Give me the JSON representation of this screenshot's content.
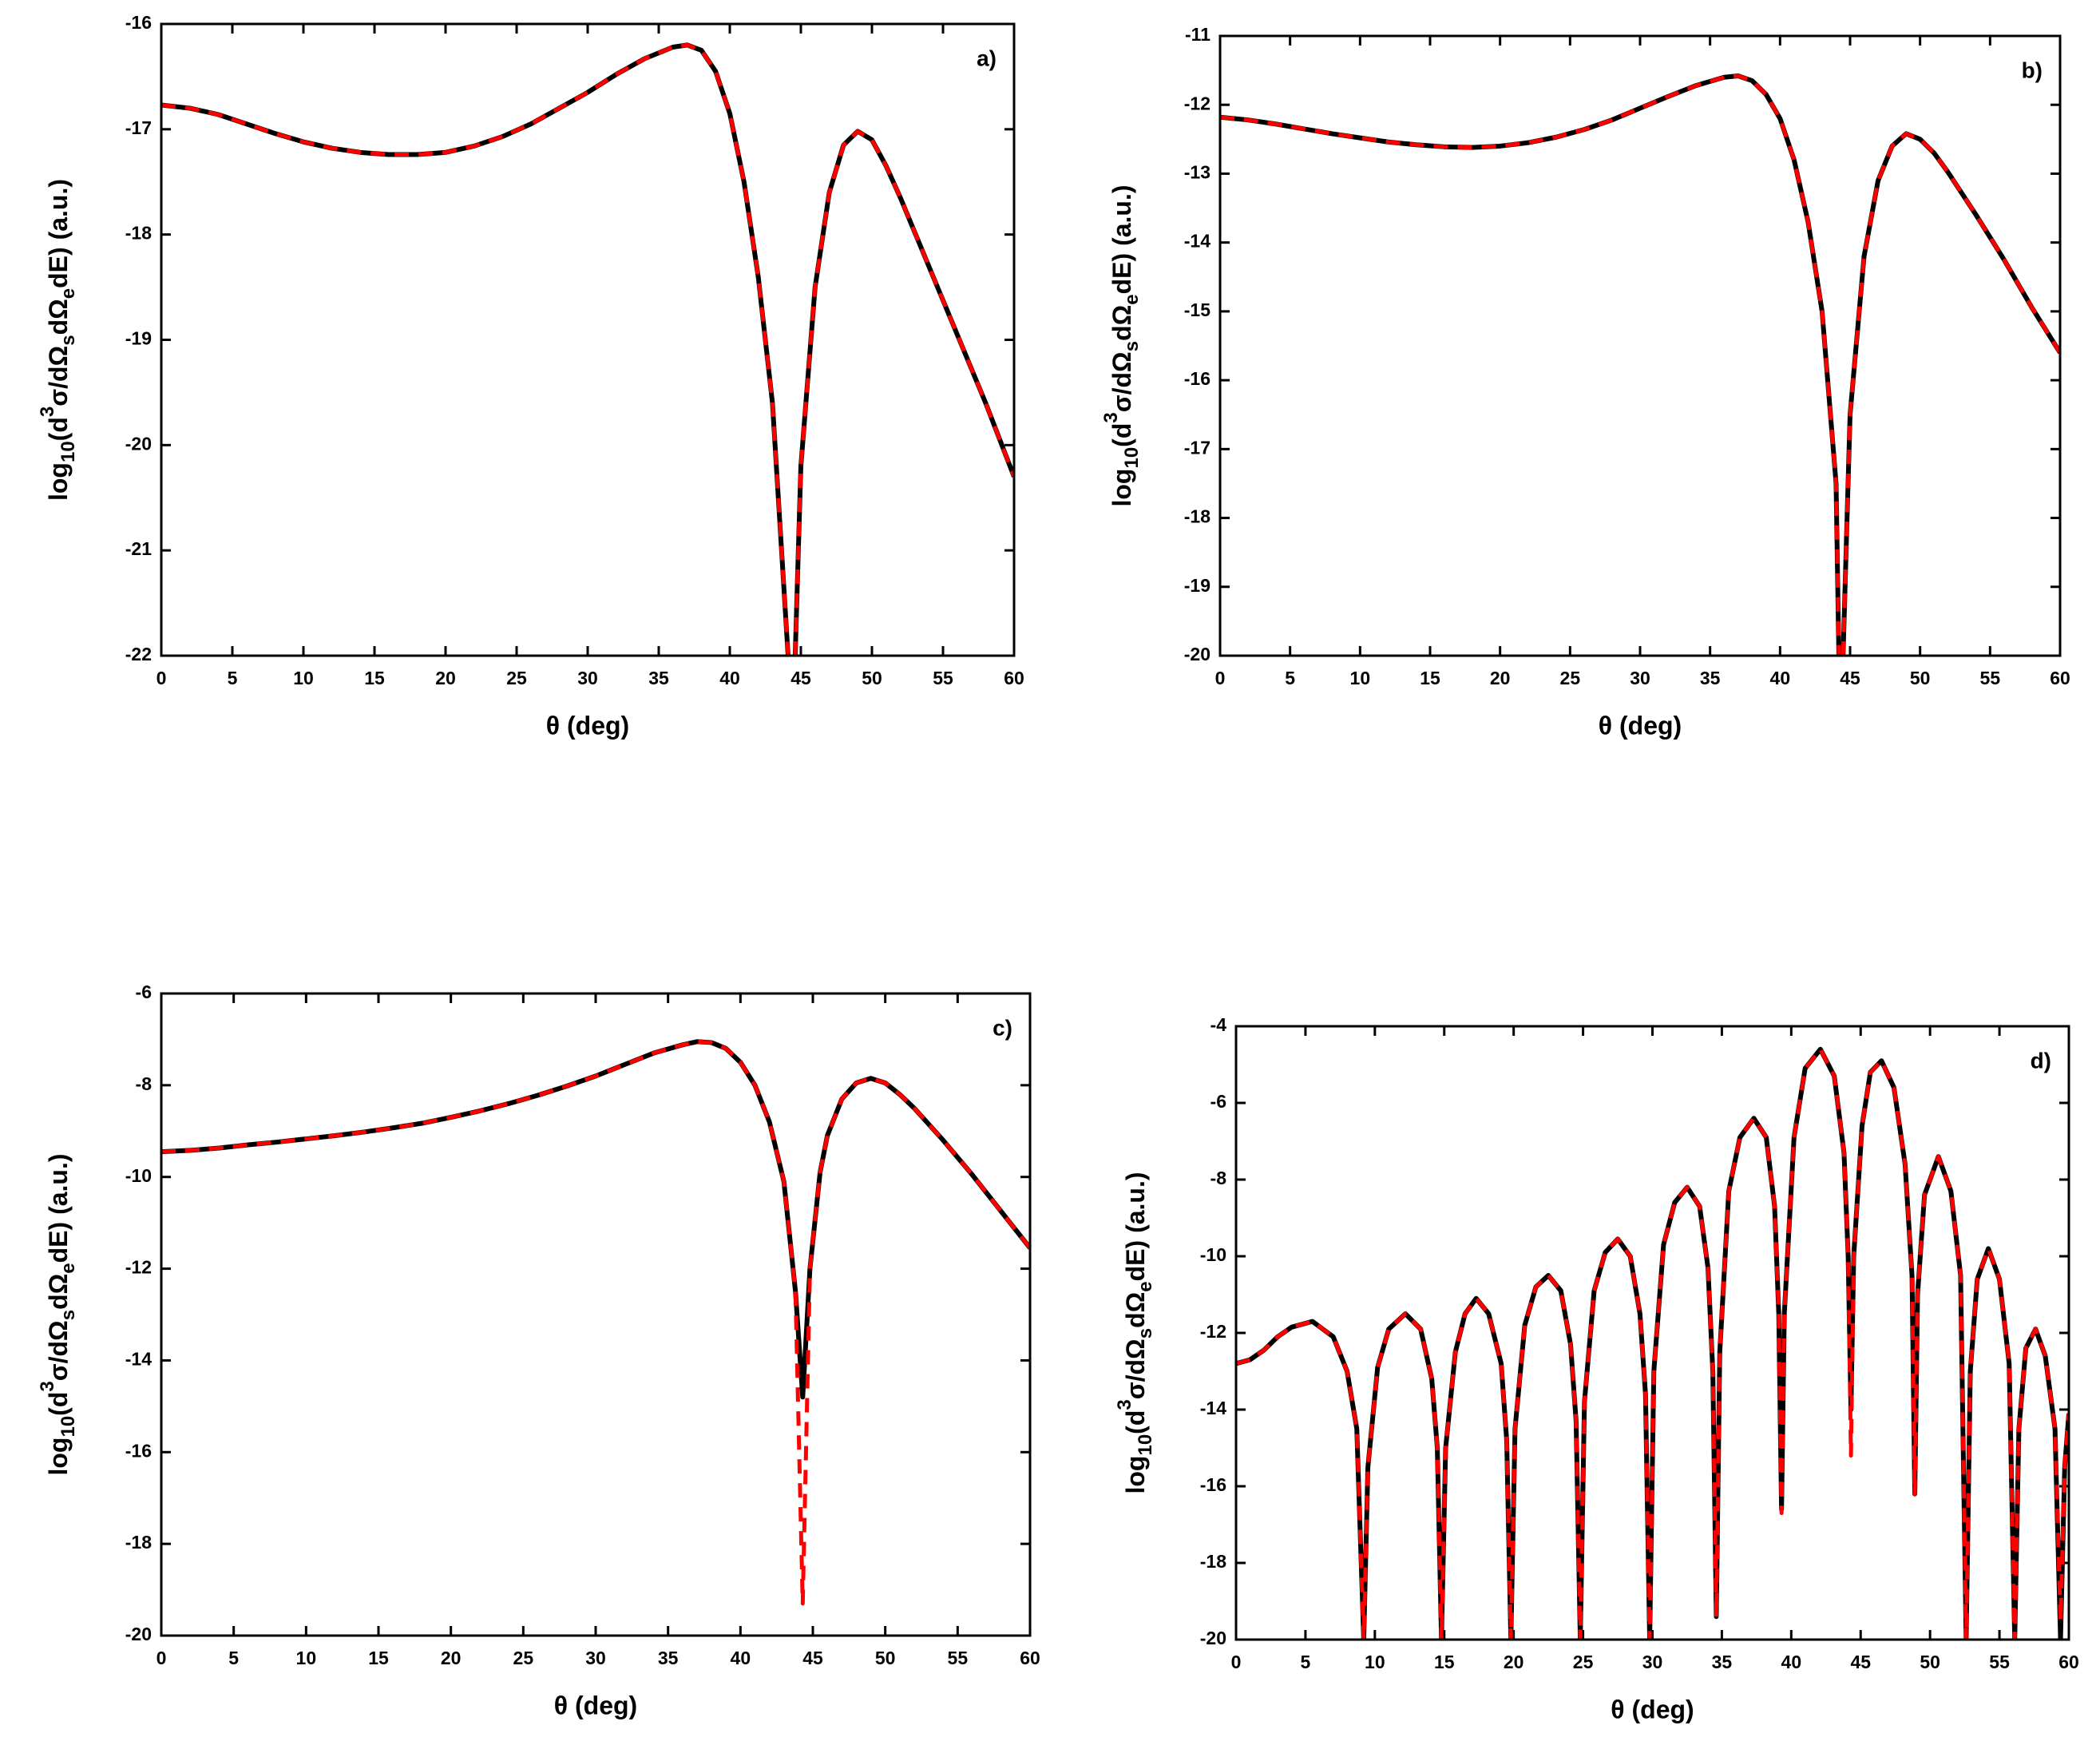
{
  "chart_data": [
    {
      "type": "line",
      "label": "a)",
      "xlabel": "θ (deg)",
      "ylabel": [
        "log",
        "10",
        "(d",
        "3",
        "σ/dΩ",
        "s",
        "dΩ",
        "e",
        "dE) (a.u.)"
      ],
      "xlim": [
        0,
        60
      ],
      "ylim": [
        -22,
        -16
      ],
      "xticks": [
        0,
        5,
        10,
        15,
        20,
        25,
        30,
        35,
        40,
        45,
        50,
        55,
        60
      ],
      "yticks": [
        -22,
        -21,
        -20,
        -19,
        -18,
        -17,
        -16
      ],
      "x": [
        0,
        2,
        4,
        6,
        8,
        10,
        12,
        14,
        16,
        18,
        20,
        22,
        24,
        26,
        28,
        30,
        32,
        34,
        36,
        37,
        38,
        39,
        40,
        41,
        42,
        43,
        44.1,
        44.35,
        44.6,
        45,
        46,
        47,
        48,
        49,
        50,
        51,
        52,
        54,
        56,
        58,
        60
      ],
      "series": [
        {
          "color": "#000000",
          "linestyle": "solid",
          "values": [
            -16.77,
            -16.8,
            -16.86,
            -16.95,
            -17.04,
            -17.12,
            -17.18,
            -17.22,
            -17.24,
            -17.24,
            -17.22,
            -17.16,
            -17.07,
            -16.95,
            -16.8,
            -16.65,
            -16.48,
            -16.33,
            -16.22,
            -16.2,
            -16.25,
            -16.45,
            -16.85,
            -17.5,
            -18.4,
            -19.6,
            -22,
            null,
            -22,
            -20.2,
            -18.5,
            -17.6,
            -17.15,
            -17.02,
            -17.1,
            -17.35,
            -17.65,
            -18.3,
            -18.95,
            -19.6,
            -20.3
          ]
        },
        {
          "color": "#ff0000",
          "linestyle": "dashed",
          "values": [
            -16.77,
            -16.8,
            -16.86,
            -16.95,
            -17.04,
            -17.12,
            -17.18,
            -17.22,
            -17.24,
            -17.24,
            -17.22,
            -17.16,
            -17.07,
            -16.95,
            -16.8,
            -16.65,
            -16.48,
            -16.33,
            -16.22,
            -16.2,
            -16.25,
            -16.45,
            -16.85,
            -17.5,
            -18.4,
            -19.6,
            -22,
            null,
            -22,
            -20.2,
            -18.5,
            -17.6,
            -17.15,
            -17.02,
            -17.1,
            -17.35,
            -17.65,
            -18.3,
            -18.95,
            -19.6,
            -20.3
          ]
        }
      ]
    },
    {
      "type": "line",
      "label": "b)",
      "xlabel": "θ (deg)",
      "ylabel": [
        "log",
        "10",
        "(d",
        "3",
        "σ/dΩ",
        "s",
        "dΩ",
        "e",
        "dE) (a.u.)"
      ],
      "xlim": [
        0,
        60
      ],
      "ylim": [
        -20,
        -11
      ],
      "xticks": [
        0,
        5,
        10,
        15,
        20,
        25,
        30,
        35,
        40,
        45,
        50,
        55,
        60
      ],
      "yticks": [
        -20,
        -19,
        -18,
        -17,
        -16,
        -15,
        -14,
        -13,
        -12,
        -11
      ],
      "x": [
        0,
        2,
        4,
        6,
        8,
        10,
        12,
        14,
        16,
        18,
        20,
        22,
        24,
        26,
        28,
        30,
        32,
        34,
        36,
        37,
        38,
        39,
        40,
        41,
        42,
        43,
        44,
        44.2,
        44.35,
        44.5,
        45,
        46,
        47,
        48,
        49,
        50,
        51,
        52,
        54,
        56,
        58,
        60
      ],
      "series": [
        {
          "color": "#000000",
          "linestyle": "solid",
          "values": [
            -12.18,
            -12.22,
            -12.28,
            -12.35,
            -12.42,
            -12.48,
            -12.54,
            -12.58,
            -12.61,
            -12.62,
            -12.6,
            -12.55,
            -12.47,
            -12.36,
            -12.22,
            -12.05,
            -11.88,
            -11.72,
            -11.6,
            -11.58,
            -11.65,
            -11.85,
            -12.2,
            -12.8,
            -13.7,
            -15,
            -17.5,
            -20,
            null,
            -20,
            -16.5,
            -14.2,
            -13.1,
            -12.6,
            -12.42,
            -12.5,
            -12.7,
            -12.98,
            -13.6,
            -14.25,
            -14.95,
            -15.6
          ]
        },
        {
          "color": "#ff0000",
          "linestyle": "dashed",
          "values": [
            -12.18,
            -12.22,
            -12.28,
            -12.35,
            -12.42,
            -12.48,
            -12.54,
            -12.58,
            -12.61,
            -12.62,
            -12.6,
            -12.55,
            -12.47,
            -12.36,
            -12.22,
            -12.05,
            -11.88,
            -11.72,
            -11.6,
            -11.58,
            -11.65,
            -11.85,
            -12.2,
            -12.8,
            -13.7,
            -15,
            -17.5,
            -20,
            null,
            -20,
            -16.5,
            -14.2,
            -13.1,
            -12.6,
            -12.42,
            -12.5,
            -12.7,
            -12.98,
            -13.6,
            -14.25,
            -14.95,
            -15.6
          ]
        }
      ]
    },
    {
      "type": "line",
      "label": "c)",
      "xlabel": "θ (deg)",
      "ylabel": [
        "log",
        "10",
        "(d",
        "3",
        "σ/dΩ",
        "s",
        "dΩ",
        "e",
        "dE) (a.u.)"
      ],
      "xlim": [
        0,
        60
      ],
      "ylim": [
        -20,
        -6
      ],
      "xticks": [
        0,
        5,
        10,
        15,
        20,
        25,
        30,
        35,
        40,
        45,
        50,
        55,
        60
      ],
      "yticks": [
        -20,
        -18,
        -16,
        -14,
        -12,
        -10,
        -8,
        -6
      ],
      "x": [
        0,
        2,
        4,
        6,
        8,
        10,
        12,
        14,
        16,
        18,
        20,
        22,
        24,
        26,
        28,
        30,
        32,
        34,
        36,
        37,
        38,
        39,
        40,
        41,
        42,
        43,
        43.8,
        44.3,
        44.8,
        45.5,
        46,
        47,
        48,
        49,
        50,
        51,
        52,
        54,
        56,
        58,
        60
      ],
      "series": [
        {
          "color": "#000000",
          "linestyle": "solid",
          "values": [
            -9.45,
            -9.42,
            -9.37,
            -9.3,
            -9.24,
            -9.17,
            -9.1,
            -9.02,
            -8.93,
            -8.83,
            -8.7,
            -8.56,
            -8.4,
            -8.22,
            -8.02,
            -7.8,
            -7.55,
            -7.3,
            -7.12,
            -7.05,
            -7.07,
            -7.2,
            -7.5,
            -8.0,
            -8.8,
            -10.1,
            -12.5,
            -14.8,
            -12,
            -9.9,
            -9.1,
            -8.3,
            -7.95,
            -7.85,
            -7.95,
            -8.2,
            -8.5,
            -9.2,
            -9.95,
            -10.75,
            -11.55
          ]
        },
        {
          "color": "#ff0000",
          "linestyle": "dashed",
          "values": [
            -9.45,
            -9.42,
            -9.37,
            -9.3,
            -9.24,
            -9.17,
            -9.1,
            -9.02,
            -8.93,
            -8.83,
            -8.7,
            -8.56,
            -8.4,
            -8.22,
            -8.02,
            -7.8,
            -7.55,
            -7.3,
            -7.12,
            -7.05,
            -7.07,
            -7.2,
            -7.5,
            -8.0,
            -8.8,
            -10.1,
            -12.5,
            -19.3,
            -12,
            -9.9,
            -9.1,
            -8.3,
            -7.95,
            -7.85,
            -7.95,
            -8.2,
            -8.5,
            -9.2,
            -9.95,
            -10.75,
            -11.55
          ]
        }
      ]
    },
    {
      "type": "line",
      "label": "d)",
      "xlabel": "θ (deg)",
      "ylabel": [
        "log",
        "10",
        "(d",
        "3",
        "σ/dΩ",
        "s",
        "dΩ",
        "e",
        "dE) (a.u.)"
      ],
      "xlim": [
        0,
        60
      ],
      "ylim": [
        -20,
        -4
      ],
      "xticks": [
        0,
        5,
        10,
        15,
        20,
        25,
        30,
        35,
        40,
        45,
        50,
        55,
        60
      ],
      "yticks": [
        -20,
        -18,
        -16,
        -14,
        -12,
        -10,
        -8,
        -6,
        -4
      ],
      "x": [
        0,
        1,
        2,
        3,
        4,
        5.5,
        7,
        8,
        8.7,
        9.2,
        9.5,
        10.2,
        11,
        12.2,
        13.3,
        14.1,
        14.5,
        14.8,
        15.1,
        15.8,
        16.5,
        17.3,
        18.2,
        19.1,
        19.5,
        19.8,
        20.1,
        20.8,
        21.6,
        22.5,
        23.4,
        24.1,
        24.5,
        24.8,
        25.1,
        25.8,
        26.6,
        27.5,
        28.4,
        29.1,
        29.5,
        29.8,
        30.1,
        30.8,
        31.6,
        32.5,
        33.4,
        34,
        34.35,
        34.6,
        34.85,
        35.5,
        36.3,
        37.3,
        38.2,
        38.8,
        39.1,
        39.3,
        39.5,
        40.2,
        41,
        42.1,
        43.1,
        43.8,
        44.1,
        44.3,
        44.5,
        45.1,
        45.7,
        46.5,
        47.4,
        48.2,
        48.7,
        48.9,
        49.1,
        49.6,
        50.6,
        51.5,
        52.2,
        52.6,
        52.9,
        53.4,
        54.2,
        55,
        55.7,
        56.1,
        56.4,
        56.9,
        57.6,
        58.3,
        59,
        59.4,
        59.7,
        60
      ],
      "series": [
        {
          "color": "#000000",
          "linestyle": "solid",
          "values": [
            -12.8,
            -12.7,
            -12.45,
            -12.1,
            -11.85,
            -11.7,
            -12.1,
            -13,
            -14.5,
            -20,
            -15.5,
            -12.9,
            -11.9,
            -11.5,
            -11.9,
            -13.2,
            -15,
            -20,
            -15,
            -12.5,
            -11.5,
            -11.1,
            -11.5,
            -12.8,
            -14.8,
            -20,
            -14.5,
            -11.8,
            -10.8,
            -10.5,
            -10.9,
            -12.3,
            -14.3,
            -20,
            -13.8,
            -10.9,
            -9.9,
            -9.55,
            -10,
            -11.5,
            -13.6,
            -20,
            -13,
            -9.7,
            -8.6,
            -8.2,
            -8.7,
            -10.3,
            -13,
            -19.4,
            -12.5,
            -8.3,
            -6.9,
            -6.4,
            -6.9,
            -8.7,
            -11.5,
            -16.6,
            -11.5,
            -6.9,
            -5.1,
            -4.6,
            -5.3,
            -7.3,
            -10,
            -14,
            -10,
            -6.6,
            -5.2,
            -4.9,
            -5.6,
            -7.6,
            -10.5,
            -16.2,
            -11,
            -8.4,
            -7.4,
            -8.3,
            -10.5,
            -20,
            -13,
            -10.6,
            -9.8,
            -10.6,
            -12.8,
            -20,
            -14.5,
            -12.4,
            -11.9,
            -12.6,
            -14.5,
            -20,
            -15.5,
            -14.1
          ]
        },
        {
          "color": "#ff0000",
          "linestyle": "dashed",
          "values": [
            -12.8,
            -12.7,
            -12.45,
            -12.1,
            -11.85,
            -11.7,
            -12.1,
            -13,
            -14.5,
            -20,
            -15.5,
            -12.9,
            -11.9,
            -11.5,
            -11.9,
            -13.2,
            -15,
            -20,
            -15,
            -12.5,
            -11.5,
            -11.1,
            -11.5,
            -12.8,
            -14.8,
            -20,
            -14.5,
            -11.8,
            -10.8,
            -10.5,
            -10.9,
            -12.3,
            -14.3,
            -20,
            -13.8,
            -10.9,
            -9.9,
            -9.55,
            -10,
            -11.5,
            -13.6,
            -20,
            -13,
            -9.7,
            -8.6,
            -8.2,
            -8.7,
            -10.3,
            -13,
            -19.4,
            -12.5,
            -8.3,
            -6.9,
            -6.4,
            -6.9,
            -8.7,
            -11.5,
            -16.7,
            -11.5,
            -6.9,
            -5.1,
            -4.6,
            -5.3,
            -7.3,
            -10,
            -15.2,
            -10,
            -6.6,
            -5.2,
            -4.9,
            -5.6,
            -7.6,
            -10.5,
            -16.2,
            -11,
            -8.4,
            -7.4,
            -8.3,
            -10.5,
            -20,
            -13,
            -10.6,
            -9.8,
            -10.6,
            -12.8,
            -20,
            -14.5,
            -12.4,
            -11.9,
            -12.6,
            -14.5,
            -19.5,
            -15.5,
            -14.1
          ]
        }
      ]
    }
  ]
}
